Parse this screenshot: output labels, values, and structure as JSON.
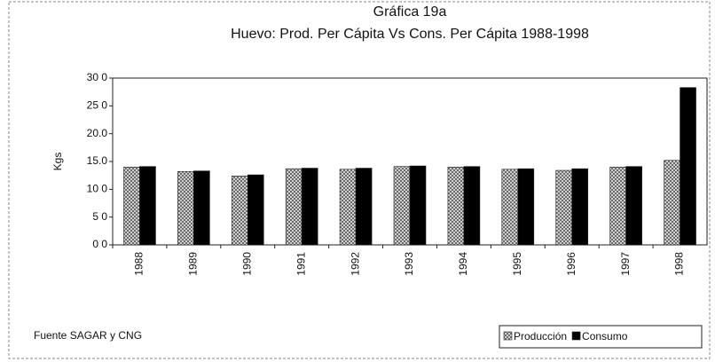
{
  "chart_data": {
    "type": "bar",
    "title": "Gráfica 19a",
    "subtitle": "Huevo: Prod. Per Cápita Vs Cons. Per Cápita 1988-1998",
    "y_label": "Kgs",
    "source": "Fuente  SAGAR y CNG",
    "categories": [
      "1988",
      "1989",
      "1990",
      "1991",
      "1992",
      "1993",
      "1994",
      "1995",
      "1996",
      "1997",
      "1998"
    ],
    "series": [
      {
        "name": "Producción",
        "color": "#a8a8a8",
        "values": [
          14.0,
          13.2,
          12.4,
          13.7,
          13.6,
          14.1,
          14.0,
          13.6,
          13.4,
          14.0,
          15.2
        ]
      },
      {
        "name": "Consumo",
        "color": "#000000",
        "values": [
          14.1,
          13.3,
          12.6,
          13.8,
          13.8,
          14.2,
          14.1,
          13.7,
          13.7,
          14.1,
          28.3
        ]
      }
    ],
    "ylim": [
      0,
      30
    ],
    "yticks": [
      {
        "value": 0,
        "label": "0 0"
      },
      {
        "value": 5,
        "label": "5 0"
      },
      {
        "value": 10,
        "label": "10 0"
      },
      {
        "value": 15,
        "label": "15.0"
      },
      {
        "value": 20,
        "label": "20.0"
      },
      {
        "value": 25,
        "label": "25 0"
      },
      {
        "value": 30,
        "label": "30 0"
      }
    ],
    "grid": false,
    "legend": "bottom-right"
  }
}
